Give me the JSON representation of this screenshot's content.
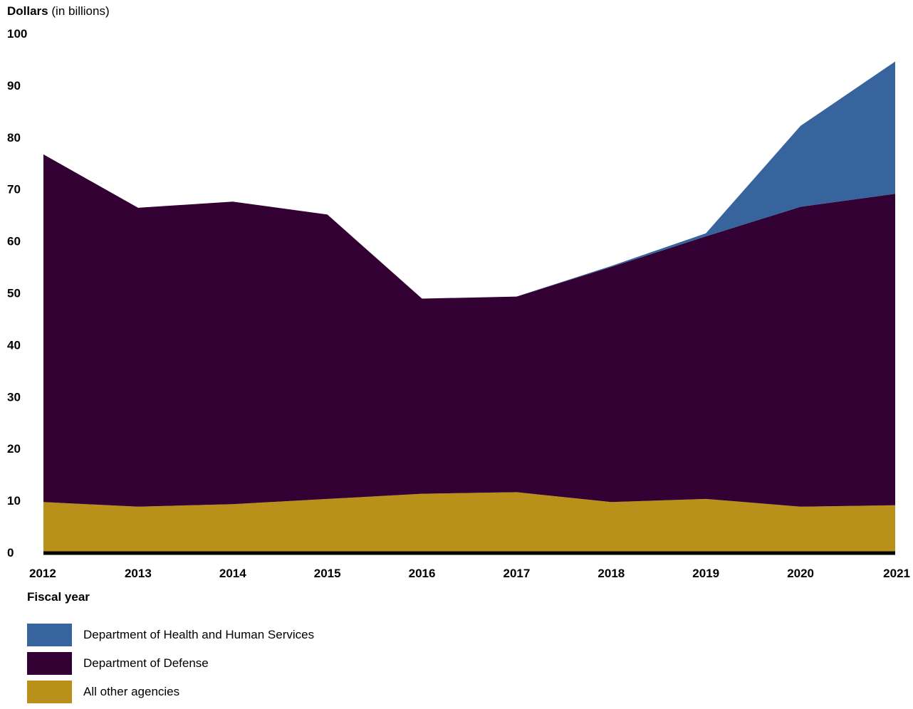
{
  "chart_data": {
    "type": "area",
    "stacked": true,
    "ylabel_bold": "Dollars",
    "ylabel_rest": "(in billions)",
    "xlabel": "Fiscal year",
    "x": [
      "2012",
      "2013",
      "2014",
      "2015",
      "2016",
      "2017",
      "2018",
      "2019",
      "2020",
      "2021"
    ],
    "ylim": [
      0,
      100
    ],
    "yticks": [
      0,
      10,
      20,
      30,
      40,
      50,
      60,
      70,
      80,
      90,
      100
    ],
    "grid": false,
    "legend_position": "bottom-left",
    "series": [
      {
        "name": "All other agencies",
        "color": "#b8901a",
        "values": [
          9.7,
          8.8,
          9.3,
          10.3,
          11.3,
          11.6,
          9.7,
          10.3,
          8.8,
          9.1
        ]
      },
      {
        "name": "Department of Defense",
        "color": "#320032",
        "values": [
          67.0,
          57.6,
          58.3,
          54.8,
          37.6,
          37.7,
          45.3,
          50.6,
          57.8,
          60.0
        ]
      },
      {
        "name": "Department of Health and Human Services",
        "color": "#38649e",
        "values": [
          0,
          0,
          0,
          0,
          0,
          0,
          0.2,
          0.6,
          15.6,
          25.5
        ]
      }
    ]
  }
}
